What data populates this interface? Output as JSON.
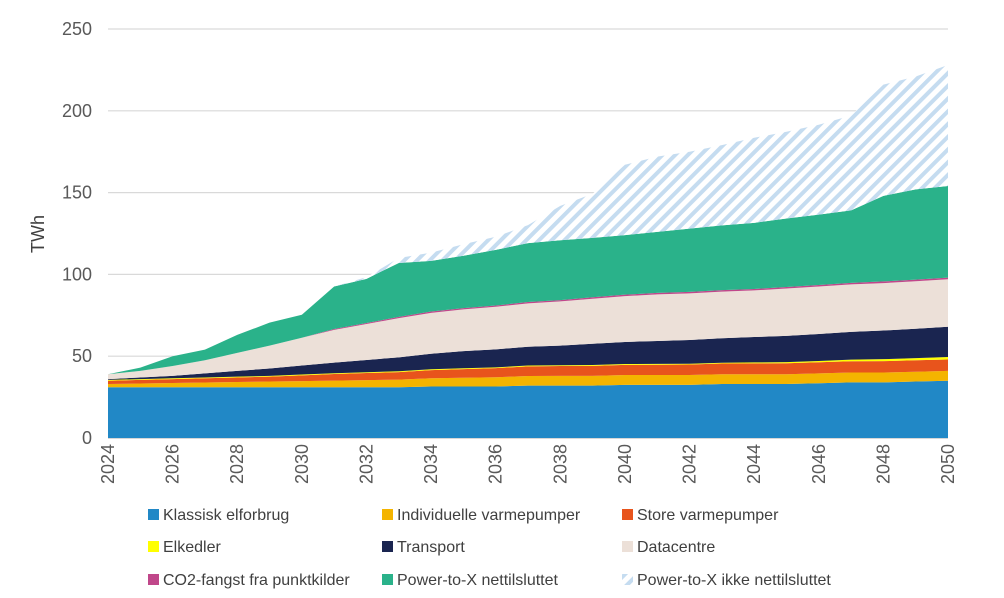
{
  "chart_data": {
    "type": "area",
    "stacked": true,
    "ylabel": "TWh",
    "xlabel": "",
    "ylim": [
      0,
      250
    ],
    "yticks": [
      0,
      50,
      100,
      150,
      200,
      250
    ],
    "xlim": [
      2024,
      2050
    ],
    "xticks": [
      2024,
      2026,
      2028,
      2030,
      2032,
      2034,
      2036,
      2038,
      2040,
      2042,
      2044,
      2046,
      2048,
      2050
    ],
    "grid": "horizontal",
    "legend_position": "bottom",
    "x": [
      2024,
      2025,
      2026,
      2027,
      2028,
      2029,
      2030,
      2031,
      2032,
      2033,
      2034,
      2035,
      2036,
      2037,
      2038,
      2039,
      2040,
      2041,
      2042,
      2043,
      2044,
      2045,
      2046,
      2047,
      2048,
      2049,
      2050
    ],
    "series": [
      {
        "name": "Klassisk elforbrug",
        "color": "#2188c6",
        "fill": "solid",
        "values": [
          31,
          31,
          31,
          31,
          31,
          31,
          31,
          31,
          31,
          31,
          31.5,
          31.5,
          31.5,
          32,
          32,
          32,
          32.5,
          32.5,
          32.5,
          33,
          33,
          33,
          33.5,
          34,
          34,
          34.5,
          35
        ]
      },
      {
        "name": "Individuelle varmepumper",
        "color": "#f4b400",
        "fill": "solid",
        "values": [
          2,
          2.3,
          2.6,
          2.9,
          3.2,
          3.5,
          3.8,
          4.1,
          4.4,
          4.7,
          5,
          5.3,
          5.6,
          5.9,
          6,
          6,
          6,
          6,
          6,
          6,
          6,
          6,
          6,
          6,
          6,
          6,
          6
        ]
      },
      {
        "name": "Store varmepumper",
        "color": "#e8541c",
        "fill": "solid",
        "values": [
          2,
          2.2,
          2.4,
          2.6,
          2.8,
          3,
          3.5,
          4,
          4.3,
          4.6,
          5,
          5.3,
          5.6,
          5.9,
          6,
          6.1,
          6.2,
          6.3,
          6.4,
          6.5,
          6.6,
          6.7,
          6.8,
          6.9,
          7,
          7,
          7
        ]
      },
      {
        "name": "Elkedler",
        "color": "#ffff00",
        "fill": "solid",
        "values": [
          0.5,
          0.5,
          0.5,
          0.5,
          0.5,
          0.5,
          0.5,
          0.5,
          0.5,
          0.5,
          0.5,
          0.5,
          0.5,
          0.5,
          0.5,
          0.5,
          0.5,
          0.5,
          0.5,
          0.5,
          0.6,
          0.7,
          0.8,
          1,
          1.2,
          1.3,
          1.5
        ]
      },
      {
        "name": "Transport",
        "color": "#1a2550",
        "fill": "solid",
        "values": [
          0.5,
          1,
          1.5,
          2.5,
          3.5,
          4.5,
          5.5,
          6.5,
          7.5,
          8.5,
          9.5,
          10.5,
          11,
          11.5,
          12,
          13,
          13.5,
          14,
          14.5,
          15,
          15.5,
          16,
          16.5,
          17,
          17.5,
          18,
          18.5
        ]
      },
      {
        "name": "Datacentre",
        "color": "#ece0d8",
        "fill": "solid",
        "values": [
          3,
          4,
          6,
          8,
          11,
          14,
          17,
          20,
          22,
          24,
          25,
          25.5,
          26,
          26.5,
          27,
          27.5,
          28,
          28.5,
          28.5,
          28.5,
          28.5,
          29,
          29,
          29,
          29,
          29,
          29
        ]
      },
      {
        "name": "CO2-fangst fra punktkilder",
        "color": "#c0478a",
        "fill": "solid",
        "values": [
          0,
          0,
          0,
          0,
          0,
          0,
          0,
          0.5,
          0.6,
          0.7,
          0.8,
          0.8,
          0.8,
          0.8,
          0.8,
          0.9,
          0.9,
          0.9,
          0.9,
          0.9,
          0.9,
          0.9,
          0.9,
          0.9,
          1,
          1,
          1
        ]
      },
      {
        "name": "Power-to-X nettilsluttet",
        "color": "#2ab28a",
        "fill": "solid",
        "values": [
          0,
          2,
          6,
          6.5,
          11,
          14,
          14,
          26,
          27,
          33,
          31,
          32,
          34,
          36,
          36.6,
          36.3,
          36.4,
          37.3,
          38.7,
          39.6,
          40.4,
          41.9,
          43,
          44.3,
          52.3,
          55.2,
          56
        ]
      },
      {
        "name": "Power-to-X ikke nettilsluttet",
        "color": "#c5dcf0",
        "fill": "hatched",
        "values": [
          0,
          0,
          0,
          0,
          0,
          0,
          0,
          0,
          1,
          3,
          5,
          7,
          8,
          11,
          21,
          27,
          43,
          46,
          47,
          49,
          52,
          53,
          55,
          58,
          68,
          69,
          74
        ]
      }
    ]
  }
}
